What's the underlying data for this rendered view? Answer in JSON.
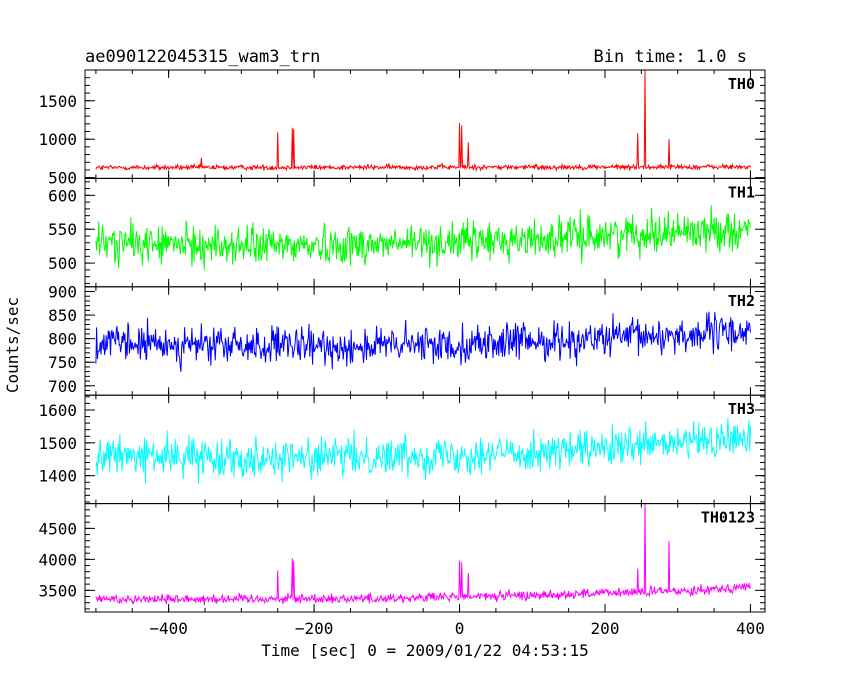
{
  "header": {
    "title": "ae090122045315_wam3_trn",
    "bin_time": "Bin time: 1.0 s"
  },
  "axes": {
    "xlabel": "Time [sec] 0 = 2009/01/22 04:53:15",
    "ylabel": "Counts/sec",
    "xlim": [
      -515,
      420
    ],
    "xticks": [
      -400,
      -200,
      0,
      200,
      400
    ],
    "xtick_labels": [
      "−400",
      "−200",
      "0",
      "200",
      "400"
    ]
  },
  "chart_data": {
    "type": "line",
    "x_range": [
      -500,
      400
    ],
    "bin_time_s": 1.0,
    "panels": [
      {
        "name": "TH0",
        "color": "#ff0000",
        "ylim": [
          490,
          1900
        ],
        "yticks": [
          500,
          1000,
          1500
        ],
        "ytick_labels": [
          "500",
          "1000",
          "1500"
        ],
        "baseline": [
          [
            -500,
            630
          ],
          [
            400,
            640
          ]
        ],
        "noise_amplitude": 28,
        "spikes": [
          [
            -355,
            760
          ],
          [
            -250,
            1090
          ],
          [
            -230,
            1150
          ],
          [
            -228,
            1130
          ],
          [
            0,
            1210
          ],
          [
            3,
            1180
          ],
          [
            12,
            960
          ],
          [
            245,
            1080
          ],
          [
            255,
            1900
          ],
          [
            288,
            1000
          ]
        ]
      },
      {
        "name": "TH1",
        "color": "#00ff00",
        "ylim": [
          465,
          625
        ],
        "yticks": [
          500,
          550,
          600
        ],
        "ytick_labels": [
          "500",
          "550",
          "600"
        ],
        "baseline": [
          [
            -500,
            530
          ],
          [
            -300,
            525
          ],
          [
            -100,
            528
          ],
          [
            100,
            535
          ],
          [
            250,
            545
          ],
          [
            400,
            550
          ]
        ],
        "noise_amplitude": 24,
        "spikes": []
      },
      {
        "name": "TH2",
        "color": "#0000ff",
        "ylim": [
          680,
          910
        ],
        "yticks": [
          700,
          750,
          800,
          850,
          900
        ],
        "ytick_labels": [
          "700",
          "750",
          "800",
          "850",
          "900"
        ],
        "baseline": [
          [
            -500,
            790
          ],
          [
            -200,
            782
          ],
          [
            0,
            788
          ],
          [
            200,
            800
          ],
          [
            400,
            815
          ]
        ],
        "noise_amplitude": 33,
        "spikes": []
      },
      {
        "name": "TH3",
        "color": "#00ffff",
        "ylim": [
          1315,
          1645
        ],
        "yticks": [
          1400,
          1500,
          1600
        ],
        "ytick_labels": [
          "1400",
          "1500",
          "1600"
        ],
        "baseline": [
          [
            -500,
            1460
          ],
          [
            -200,
            1455
          ],
          [
            0,
            1465
          ],
          [
            200,
            1480
          ],
          [
            400,
            1515
          ]
        ],
        "noise_amplitude": 48,
        "spikes": []
      },
      {
        "name": "TH0123",
        "color": "#ff00ff",
        "ylim": [
          3150,
          4900
        ],
        "yticks": [
          3500,
          4000,
          4500
        ],
        "ytick_labels": [
          "3500",
          "4000",
          "4500"
        ],
        "baseline": [
          [
            -500,
            3360
          ],
          [
            -100,
            3370
          ],
          [
            100,
            3420
          ],
          [
            300,
            3490
          ],
          [
            400,
            3560
          ]
        ],
        "noise_amplitude": 65,
        "spikes": [
          [
            -250,
            3820
          ],
          [
            -230,
            4020
          ],
          [
            -228,
            3980
          ],
          [
            0,
            3980
          ],
          [
            3,
            3950
          ],
          [
            12,
            3780
          ],
          [
            245,
            3850
          ],
          [
            255,
            4900
          ],
          [
            288,
            4300
          ]
        ]
      }
    ]
  }
}
